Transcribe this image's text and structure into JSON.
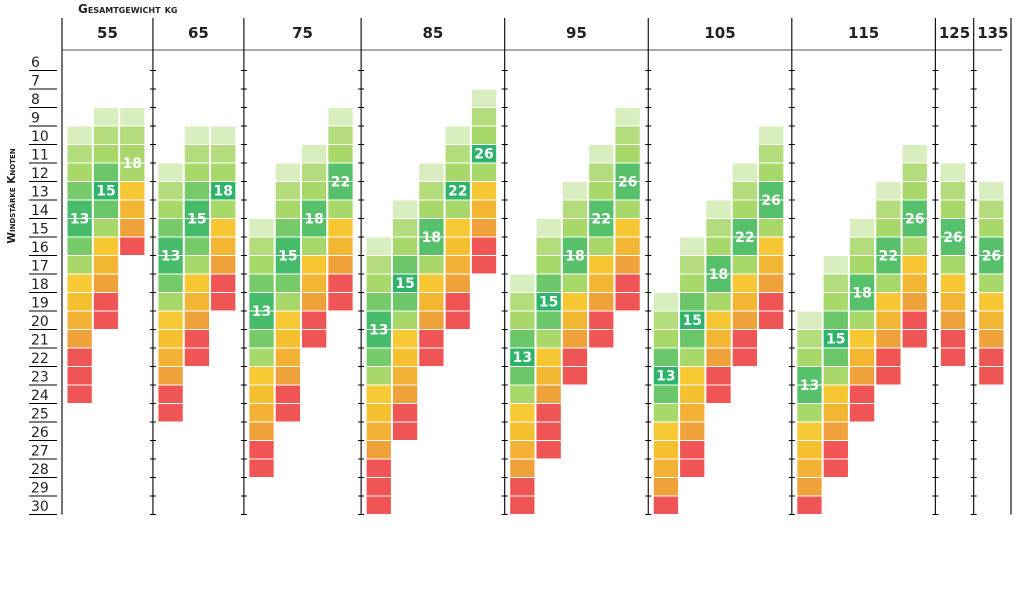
{
  "chart_data": {
    "type": "heatmap",
    "title": "Gesamtgewicht kg",
    "ylabel": "Windstärke Knoten",
    "y_ticks": [
      6,
      7,
      8,
      9,
      10,
      11,
      12,
      13,
      14,
      15,
      16,
      17,
      18,
      19,
      20,
      21,
      22,
      23,
      24,
      25,
      26,
      27,
      28,
      29,
      30
    ],
    "ylim": [
      6,
      30
    ],
    "legend": "none",
    "colors": {
      "green_dark": "#2eb46a",
      "green_light": "#a8d86a",
      "yellow": "#f7d23a",
      "orange": "#f0a23a",
      "red": "#f05555",
      "grid": "#000000"
    },
    "groups": [
      {
        "weight": "55",
        "bars": [
          {
            "size": "13",
            "green_from": 10,
            "green_to": 17,
            "yellow_to": 21,
            "end": 24
          },
          {
            "size": "15",
            "green_from": 9,
            "green_to": 15,
            "yellow_to": 18,
            "end": 20
          },
          {
            "size": "18",
            "green_from": 9,
            "green_to": 12,
            "yellow_to": 15,
            "end": 16
          }
        ]
      },
      {
        "weight": "65",
        "bars": [
          {
            "size": "13",
            "green_from": 12,
            "green_to": 19,
            "yellow_to": 23,
            "end": 25
          },
          {
            "size": "15",
            "green_from": 10,
            "green_to": 17,
            "yellow_to": 20,
            "end": 22
          },
          {
            "size": "18",
            "green_from": 10,
            "green_to": 14,
            "yellow_to": 17,
            "end": 19
          }
        ]
      },
      {
        "weight": "75",
        "bars": [
          {
            "size": "13",
            "green_from": 15,
            "green_to": 22,
            "yellow_to": 26,
            "end": 28
          },
          {
            "size": "15",
            "green_from": 12,
            "green_to": 19,
            "yellow_to": 23,
            "end": 25
          },
          {
            "size": "18",
            "green_from": 11,
            "green_to": 16,
            "yellow_to": 19,
            "end": 21
          },
          {
            "size": "22",
            "green_from": 9,
            "green_to": 14,
            "yellow_to": 17,
            "end": 19
          }
        ]
      },
      {
        "weight": "85",
        "bars": [
          {
            "size": "13",
            "green_from": 16,
            "green_to": 23,
            "yellow_to": 27,
            "end": 30
          },
          {
            "size": "15",
            "green_from": 14,
            "green_to": 20,
            "yellow_to": 24,
            "end": 26
          },
          {
            "size": "18",
            "green_from": 12,
            "green_to": 17,
            "yellow_to": 20,
            "end": 22
          },
          {
            "size": "22",
            "green_from": 10,
            "green_to": 14,
            "yellow_to": 18,
            "end": 20
          },
          {
            "size": "26",
            "green_from": 8,
            "green_to": 12,
            "yellow_to": 15,
            "end": 17
          }
        ]
      },
      {
        "weight": "95",
        "bars": [
          {
            "size": "13",
            "green_from": 18,
            "green_to": 24,
            "yellow_to": 28,
            "end": 30
          },
          {
            "size": "15",
            "green_from": 15,
            "green_to": 21,
            "yellow_to": 24,
            "end": 27
          },
          {
            "size": "18",
            "green_from": 13,
            "green_to": 18,
            "yellow_to": 21,
            "end": 23
          },
          {
            "size": "22",
            "green_from": 11,
            "green_to": 16,
            "yellow_to": 19,
            "end": 21
          },
          {
            "size": "26",
            "green_from": 9,
            "green_to": 14,
            "yellow_to": 17,
            "end": 19
          }
        ]
      },
      {
        "weight": "105",
        "bars": [
          {
            "size": "13",
            "green_from": 19,
            "green_to": 25,
            "yellow_to": 29,
            "end": 30
          },
          {
            "size": "15",
            "green_from": 16,
            "green_to": 22,
            "yellow_to": 26,
            "end": 28
          },
          {
            "size": "18",
            "green_from": 14,
            "green_to": 19,
            "yellow_to": 22,
            "end": 24
          },
          {
            "size": "22",
            "green_from": 12,
            "green_to": 17,
            "yellow_to": 20,
            "end": 22
          },
          {
            "size": "26",
            "green_from": 10,
            "green_to": 15,
            "yellow_to": 18,
            "end": 20
          }
        ]
      },
      {
        "weight": "115",
        "bars": [
          {
            "size": "13",
            "green_from": 20,
            "green_to": 25,
            "yellow_to": 29,
            "end": 30
          },
          {
            "size": "15",
            "green_from": 17,
            "green_to": 23,
            "yellow_to": 26,
            "end": 28
          },
          {
            "size": "18",
            "green_from": 15,
            "green_to": 20,
            "yellow_to": 23,
            "end": 25
          },
          {
            "size": "22",
            "green_from": 13,
            "green_to": 18,
            "yellow_to": 21,
            "end": 23
          },
          {
            "size": "26",
            "green_from": 11,
            "green_to": 16,
            "yellow_to": 19,
            "end": 21
          }
        ]
      },
      {
        "weight": "125",
        "bars": [
          {
            "size": "26",
            "green_from": 12,
            "green_to": 17,
            "yellow_to": 20,
            "end": 22
          }
        ]
      },
      {
        "weight": "135",
        "bars": [
          {
            "size": "26",
            "green_from": 13,
            "green_to": 18,
            "yellow_to": 21,
            "end": 23
          }
        ]
      }
    ]
  }
}
